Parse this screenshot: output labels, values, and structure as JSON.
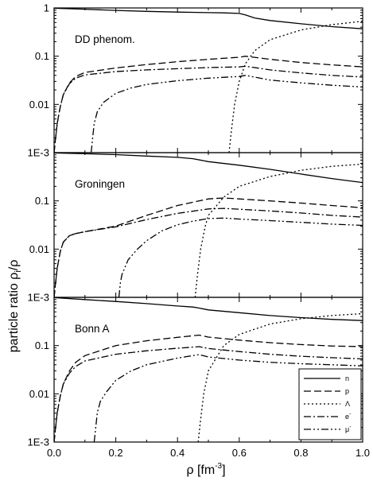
{
  "chart_data": {
    "type": "line",
    "xlabel_base": "ρ [fm",
    "xlabel_sup": "-3",
    "xlabel_end": "]",
    "ylabel": "particle ratio ρ",
    "ylabel_sub": "i",
    "ylabel_end": "/ρ",
    "xlim": [
      0.0,
      1.0
    ],
    "ylim": [
      0.001,
      1
    ],
    "yscale": "log",
    "x_ticks": [
      "0.0",
      "0.2",
      "0.4",
      "0.6",
      "0.8",
      "1.0"
    ],
    "y_ticks": [
      "1E-3",
      "0.01",
      "0.1",
      "1"
    ],
    "legend": {
      "placement": "bottom-right of lowest panel",
      "entries": [
        {
          "key": "n",
          "label": "n",
          "sup": "",
          "dash": "solid"
        },
        {
          "key": "p",
          "label": "p",
          "sup": "",
          "dash": "dash"
        },
        {
          "key": "lambda",
          "label": "Λ",
          "sup": "",
          "dash": "dot"
        },
        {
          "key": "e",
          "label": "e",
          "sup": "-",
          "dash": "dashdot"
        },
        {
          "key": "mu",
          "label": "μ",
          "sup": "-",
          "dash": "dashdotdot"
        }
      ]
    },
    "panels": [
      {
        "label": "DD phenom.",
        "series": [
          {
            "key": "n",
            "points": [
              [
                0.0,
                0.99
              ],
              [
                0.1,
                0.94
              ],
              [
                0.2,
                0.89
              ],
              [
                0.3,
                0.85
              ],
              [
                0.4,
                0.82
              ],
              [
                0.5,
                0.8
              ],
              [
                0.55,
                0.79
              ],
              [
                0.6,
                0.77
              ],
              [
                0.62,
                0.72
              ],
              [
                0.65,
                0.62
              ],
              [
                0.7,
                0.55
              ],
              [
                0.8,
                0.47
              ],
              [
                0.9,
                0.41
              ],
              [
                1.0,
                0.37
              ]
            ]
          },
          {
            "key": "p",
            "points": [
              [
                0.0,
                0.001
              ],
              [
                0.005,
                0.002
              ],
              [
                0.01,
                0.004
              ],
              [
                0.02,
                0.009
              ],
              [
                0.03,
                0.016
              ],
              [
                0.05,
                0.028
              ],
              [
                0.07,
                0.038
              ],
              [
                0.1,
                0.046
              ],
              [
                0.2,
                0.057
              ],
              [
                0.3,
                0.067
              ],
              [
                0.4,
                0.077
              ],
              [
                0.5,
                0.086
              ],
              [
                0.6,
                0.095
              ],
              [
                0.62,
                0.1
              ],
              [
                0.7,
                0.086
              ],
              [
                0.8,
                0.074
              ],
              [
                0.9,
                0.066
              ],
              [
                1.0,
                0.06
              ]
            ]
          },
          {
            "key": "lambda",
            "points": [
              [
                0.567,
                0.001
              ],
              [
                0.575,
                0.003
              ],
              [
                0.585,
                0.01
              ],
              [
                0.6,
                0.03
              ],
              [
                0.62,
                0.07
              ],
              [
                0.65,
                0.13
              ],
              [
                0.7,
                0.22
              ],
              [
                0.8,
                0.35
              ],
              [
                0.9,
                0.45
              ],
              [
                1.0,
                0.53
              ]
            ]
          },
          {
            "key": "e",
            "points": [
              [
                0.0,
                0.001
              ],
              [
                0.005,
                0.002
              ],
              [
                0.01,
                0.004
              ],
              [
                0.02,
                0.009
              ],
              [
                0.03,
                0.016
              ],
              [
                0.05,
                0.027
              ],
              [
                0.07,
                0.035
              ],
              [
                0.1,
                0.041
              ],
              [
                0.2,
                0.048
              ],
              [
                0.3,
                0.052
              ],
              [
                0.4,
                0.055
              ],
              [
                0.5,
                0.058
              ],
              [
                0.6,
                0.06
              ],
              [
                0.62,
                0.062
              ],
              [
                0.7,
                0.052
              ],
              [
                0.8,
                0.045
              ],
              [
                0.9,
                0.04
              ],
              [
                1.0,
                0.037
              ]
            ]
          },
          {
            "key": "mu",
            "points": [
              [
                0.12,
                0.001
              ],
              [
                0.125,
                0.002
              ],
              [
                0.13,
                0.004
              ],
              [
                0.14,
                0.007
              ],
              [
                0.16,
                0.011
              ],
              [
                0.2,
                0.017
              ],
              [
                0.25,
                0.022
              ],
              [
                0.3,
                0.026
              ],
              [
                0.4,
                0.031
              ],
              [
                0.5,
                0.035
              ],
              [
                0.6,
                0.038
              ],
              [
                0.62,
                0.04
              ],
              [
                0.7,
                0.032
              ],
              [
                0.8,
                0.028
              ],
              [
                0.9,
                0.025
              ],
              [
                1.0,
                0.023
              ]
            ]
          }
        ]
      },
      {
        "label": "Groningen",
        "series": [
          {
            "key": "n",
            "points": [
              [
                0.0,
                0.99
              ],
              [
                0.1,
                0.95
              ],
              [
                0.2,
                0.91
              ],
              [
                0.3,
                0.85
              ],
              [
                0.4,
                0.8
              ],
              [
                0.45,
                0.75
              ],
              [
                0.5,
                0.65
              ],
              [
                0.6,
                0.55
              ],
              [
                0.7,
                0.45
              ],
              [
                0.8,
                0.36
              ],
              [
                0.9,
                0.29
              ],
              [
                1.0,
                0.24
              ]
            ]
          },
          {
            "key": "p",
            "points": [
              [
                0.0,
                0.001
              ],
              [
                0.005,
                0.002
              ],
              [
                0.01,
                0.004
              ],
              [
                0.02,
                0.009
              ],
              [
                0.03,
                0.014
              ],
              [
                0.05,
                0.019
              ],
              [
                0.07,
                0.021
              ],
              [
                0.1,
                0.023
              ],
              [
                0.2,
                0.03
              ],
              [
                0.3,
                0.05
              ],
              [
                0.4,
                0.08
              ],
              [
                0.5,
                0.11
              ],
              [
                0.55,
                0.115
              ],
              [
                0.6,
                0.11
              ],
              [
                0.7,
                0.1
              ],
              [
                0.8,
                0.09
              ],
              [
                0.9,
                0.08
              ],
              [
                1.0,
                0.072
              ]
            ]
          },
          {
            "key": "lambda",
            "points": [
              [
                0.457,
                0.001
              ],
              [
                0.465,
                0.003
              ],
              [
                0.475,
                0.01
              ],
              [
                0.49,
                0.03
              ],
              [
                0.5,
                0.05
              ],
              [
                0.55,
                0.12
              ],
              [
                0.6,
                0.2
              ],
              [
                0.7,
                0.32
              ],
              [
                0.8,
                0.43
              ],
              [
                0.9,
                0.52
              ],
              [
                1.0,
                0.58
              ]
            ]
          },
          {
            "key": "e",
            "points": [
              [
                0.0,
                0.001
              ],
              [
                0.005,
                0.002
              ],
              [
                0.01,
                0.004
              ],
              [
                0.02,
                0.009
              ],
              [
                0.03,
                0.014
              ],
              [
                0.05,
                0.019
              ],
              [
                0.07,
                0.021
              ],
              [
                0.1,
                0.023
              ],
              [
                0.2,
                0.029
              ],
              [
                0.3,
                0.041
              ],
              [
                0.4,
                0.055
              ],
              [
                0.5,
                0.068
              ],
              [
                0.55,
                0.07
              ],
              [
                0.6,
                0.067
              ],
              [
                0.7,
                0.062
              ],
              [
                0.8,
                0.056
              ],
              [
                0.9,
                0.05
              ],
              [
                1.0,
                0.046
              ]
            ]
          },
          {
            "key": "mu",
            "points": [
              [
                0.21,
                0.001
              ],
              [
                0.215,
                0.002
              ],
              [
                0.22,
                0.003
              ],
              [
                0.24,
                0.006
              ],
              [
                0.27,
                0.01
              ],
              [
                0.3,
                0.015
              ],
              [
                0.35,
                0.024
              ],
              [
                0.4,
                0.032
              ],
              [
                0.45,
                0.038
              ],
              [
                0.5,
                0.043
              ],
              [
                0.55,
                0.044
              ],
              [
                0.6,
                0.042
              ],
              [
                0.7,
                0.039
              ],
              [
                0.8,
                0.036
              ],
              [
                0.9,
                0.033
              ],
              [
                1.0,
                0.031
              ]
            ]
          }
        ]
      },
      {
        "label": "Bonn A",
        "series": [
          {
            "key": "n",
            "points": [
              [
                0.0,
                0.99
              ],
              [
                0.1,
                0.9
              ],
              [
                0.2,
                0.82
              ],
              [
                0.3,
                0.74
              ],
              [
                0.4,
                0.66
              ],
              [
                0.45,
                0.63
              ],
              [
                0.47,
                0.6
              ],
              [
                0.5,
                0.55
              ],
              [
                0.6,
                0.48
              ],
              [
                0.7,
                0.42
              ],
              [
                0.8,
                0.38
              ],
              [
                0.9,
                0.35
              ],
              [
                1.0,
                0.33
              ]
            ]
          },
          {
            "key": "p",
            "points": [
              [
                0.0,
                0.001
              ],
              [
                0.005,
                0.002
              ],
              [
                0.01,
                0.004
              ],
              [
                0.02,
                0.009
              ],
              [
                0.03,
                0.016
              ],
              [
                0.05,
                0.03
              ],
              [
                0.07,
                0.045
              ],
              [
                0.1,
                0.062
              ],
              [
                0.2,
                0.1
              ],
              [
                0.3,
                0.126
              ],
              [
                0.4,
                0.148
              ],
              [
                0.47,
                0.165
              ],
              [
                0.5,
                0.15
              ],
              [
                0.6,
                0.13
              ],
              [
                0.7,
                0.115
              ],
              [
                0.8,
                0.105
              ],
              [
                0.9,
                0.098
              ],
              [
                1.0,
                0.095
              ]
            ]
          },
          {
            "key": "lambda",
            "points": [
              [
                0.467,
                0.001
              ],
              [
                0.475,
                0.003
              ],
              [
                0.485,
                0.01
              ],
              [
                0.5,
                0.03
              ],
              [
                0.55,
                0.1
              ],
              [
                0.6,
                0.17
              ],
              [
                0.7,
                0.28
              ],
              [
                0.8,
                0.36
              ],
              [
                0.9,
                0.42
              ],
              [
                1.0,
                0.46
              ]
            ]
          },
          {
            "key": "e",
            "points": [
              [
                0.0,
                0.001
              ],
              [
                0.005,
                0.002
              ],
              [
                0.01,
                0.004
              ],
              [
                0.02,
                0.009
              ],
              [
                0.03,
                0.016
              ],
              [
                0.05,
                0.027
              ],
              [
                0.07,
                0.037
              ],
              [
                0.1,
                0.048
              ],
              [
                0.2,
                0.066
              ],
              [
                0.3,
                0.078
              ],
              [
                0.4,
                0.088
              ],
              [
                0.47,
                0.095
              ],
              [
                0.5,
                0.087
              ],
              [
                0.6,
                0.075
              ],
              [
                0.7,
                0.066
              ],
              [
                0.8,
                0.06
              ],
              [
                0.9,
                0.056
              ],
              [
                1.0,
                0.053
              ]
            ]
          },
          {
            "key": "mu",
            "points": [
              [
                0.13,
                0.001
              ],
              [
                0.135,
                0.002
              ],
              [
                0.14,
                0.004
              ],
              [
                0.15,
                0.007
              ],
              [
                0.17,
                0.011
              ],
              [
                0.2,
                0.019
              ],
              [
                0.25,
                0.03
              ],
              [
                0.3,
                0.04
              ],
              [
                0.4,
                0.055
              ],
              [
                0.47,
                0.065
              ],
              [
                0.5,
                0.058
              ],
              [
                0.6,
                0.05
              ],
              [
                0.7,
                0.045
              ],
              [
                0.8,
                0.042
              ],
              [
                0.9,
                0.04
              ],
              [
                1.0,
                0.038
              ]
            ]
          }
        ]
      }
    ]
  }
}
